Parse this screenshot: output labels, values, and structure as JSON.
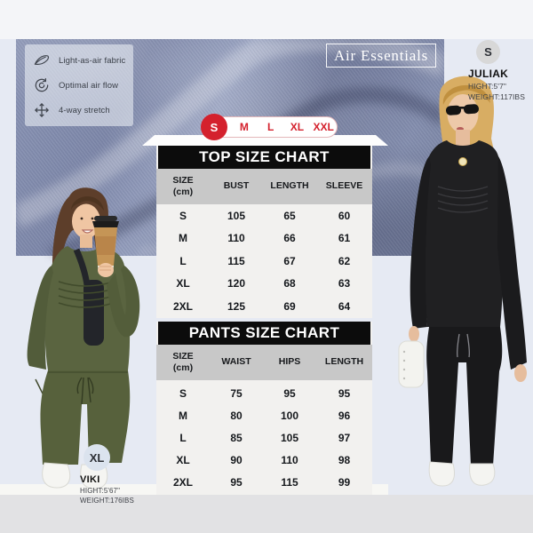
{
  "brand_badge": "Air Essentials",
  "features": [
    {
      "icon": "feather-icon",
      "label": "Light-as-air fabric"
    },
    {
      "icon": "airflow-icon",
      "label": "Optimal air flow"
    },
    {
      "icon": "stretch-icon",
      "label": "4-way stretch"
    }
  ],
  "size_selector": {
    "selected": "S",
    "options": [
      "S",
      "M",
      "L",
      "XL",
      "XXL"
    ]
  },
  "chart_data": [
    {
      "type": "table",
      "title": "TOP SIZE CHART",
      "columns": [
        "SIZE\n(cm)",
        "BUST",
        "LENGTH",
        "SLEEVE"
      ],
      "rows": [
        [
          "S",
          "105",
          "65",
          "60"
        ],
        [
          "M",
          "110",
          "66",
          "61"
        ],
        [
          "L",
          "115",
          "67",
          "62"
        ],
        [
          "XL",
          "120",
          "68",
          "63"
        ],
        [
          "2XL",
          "125",
          "69",
          "64"
        ]
      ]
    },
    {
      "type": "table",
      "title": "PANTS SIZE CHART",
      "columns": [
        "SIZE\n(cm)",
        "WAIST",
        "HIPS",
        "LENGTH"
      ],
      "rows": [
        [
          "S",
          "75",
          "95",
          "95"
        ],
        [
          "M",
          "80",
          "100",
          "96"
        ],
        [
          "L",
          "85",
          "105",
          "97"
        ],
        [
          "XL",
          "90",
          "110",
          "98"
        ],
        [
          "2XL",
          "95",
          "115",
          "99"
        ]
      ]
    }
  ],
  "models": {
    "right": {
      "size_badge": "S",
      "name": "JULIAK",
      "height": "HIGHT:5'7\"",
      "weight": "WEIGHT:117IBS"
    },
    "left": {
      "size_badge": "XL",
      "name": "VIKI",
      "height": "HIGHT:5'67\"",
      "weight": "WEIGHT:176IBS"
    }
  },
  "colors": {
    "accent_red": "#d4212d",
    "chart_header_black": "#0c0c0c",
    "column_header_gray": "#c8c8c8",
    "fabric_blue": "#7d87a9",
    "background_lavender": "#e6eaf3",
    "olive_outfit": "#5a6440",
    "black_outfit": "#1d1d1f"
  }
}
